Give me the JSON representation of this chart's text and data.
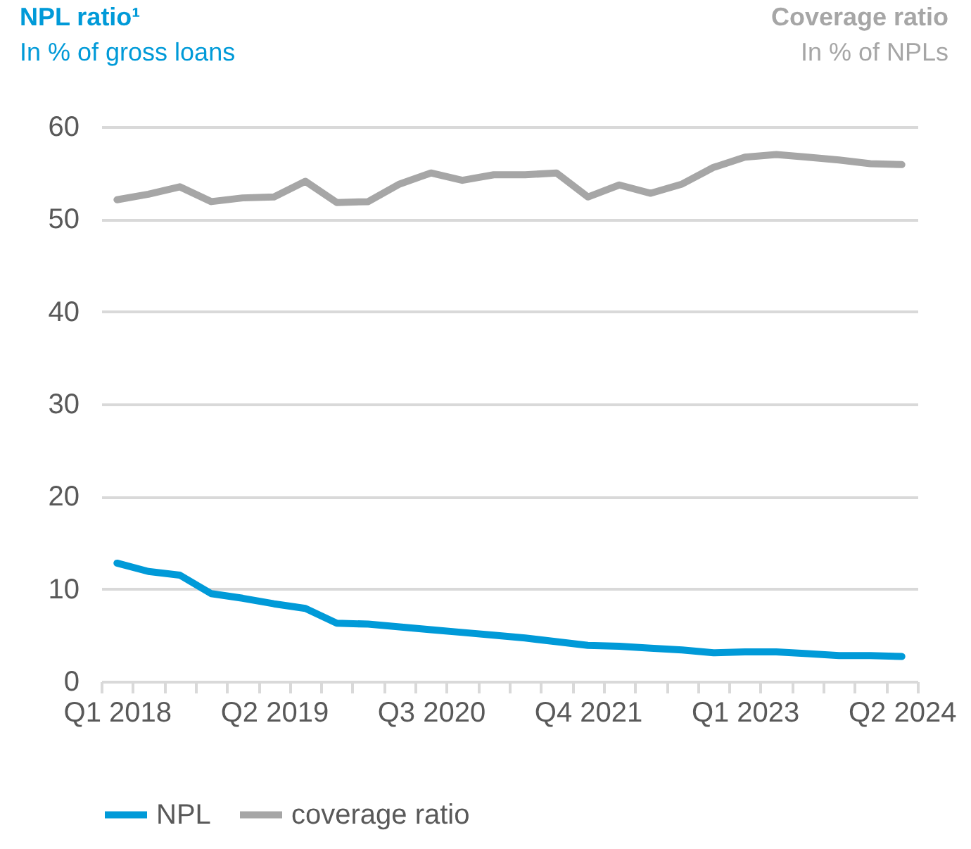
{
  "chart_data": {
    "type": "line",
    "title": "NPL ratio¹",
    "subtitle": "In % of gross loans",
    "annotations": [
      "Coverage ratio",
      "In % of NPLs"
    ],
    "categories": [
      "Q1 2018",
      null,
      null,
      null,
      null,
      "Q2 2019",
      null,
      null,
      null,
      null,
      "Q3 2020",
      null,
      null,
      null,
      null,
      "Q4 2021",
      null,
      null,
      null,
      null,
      "Q1 2023",
      null,
      null,
      null,
      null,
      "Q2 2024"
    ],
    "series": [
      {
        "name": "NPL",
        "color": "#009ad8",
        "values": [
          12.8,
          11.9,
          11.5,
          9.5,
          9.0,
          8.4,
          7.9,
          6.3,
          6.2,
          5.9,
          5.6,
          5.3,
          5.0,
          4.7,
          4.3,
          3.9,
          3.8,
          3.6,
          3.4,
          3.1,
          3.2,
          3.2,
          3.0,
          2.8,
          2.8,
          2.7
        ]
      },
      {
        "name": "coverage ratio",
        "color": "#a6a6a6",
        "values": [
          52.1,
          52.7,
          53.5,
          51.9,
          52.3,
          52.4,
          54.1,
          51.8,
          51.9,
          53.8,
          55.0,
          54.2,
          54.8,
          54.8,
          55.0,
          52.4,
          53.7,
          52.8,
          53.8,
          55.6,
          56.7,
          57.0,
          56.7,
          56.4,
          56.0,
          55.9
        ]
      }
    ],
    "ylim": [
      0,
      60
    ],
    "yticks": [
      0,
      10,
      20,
      30,
      40,
      50,
      60
    ],
    "grid": "y",
    "legend": "bottom",
    "marker": "none",
    "line_style": "solid"
  }
}
